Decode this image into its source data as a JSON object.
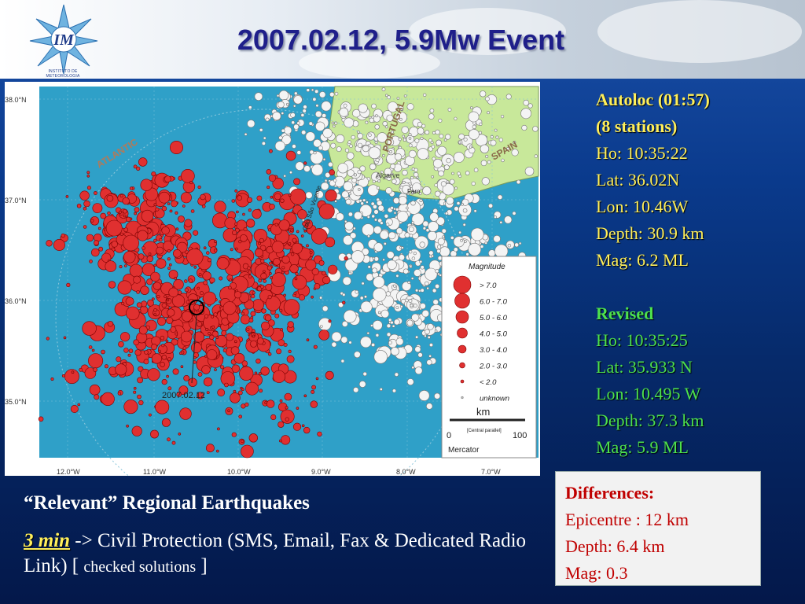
{
  "header": {
    "title": "2007.02.12, 5.9Mw Event",
    "logo_letters": "IM",
    "logo_subtext": "INSTITUTO DE METEOROLOGIA"
  },
  "map": {
    "lat_labels": [
      "38.0°N",
      "37.0°N",
      "36.0°N",
      "35.0°N"
    ],
    "lon_labels": [
      "12.0°W",
      "11.0°W",
      "10.0°W",
      "9.0°W",
      "8.0°W",
      "7.0°W"
    ],
    "region_labels": {
      "atlantic": "ATLANTIC",
      "portugal": "PORTUGAL",
      "spain": "SPAIN",
      "algarve": "Algarve",
      "faro": "Faro",
      "cape": "Cap São Vicente"
    },
    "event_label": "2007.02.12",
    "legend": {
      "title": "Magnitude",
      "items": [
        "> 7.0",
        "6.0 - 7.0",
        "5.0 - 6.0",
        "4.0 - 5.0",
        "3.0 - 4.0",
        "2.0 - 3.0",
        "< 2.0",
        "unknown"
      ]
    },
    "scale": {
      "unit": "km",
      "note": "[Central parallel]",
      "min": "0",
      "max": "100"
    },
    "projection": "Mercator",
    "colors": {
      "sea": "#2fa0c8",
      "land": "#c8e89a",
      "quake": "#e03030"
    }
  },
  "autoloc": {
    "heading1": "Autoloc (01:57)",
    "heading2": "(8 stations)",
    "lines": [
      "Ho: 10:35:22",
      "Lat: 36.02N",
      "Lon: 10.46W",
      "Depth: 30.9 km",
      "Mag: 6.2 ML"
    ]
  },
  "revised": {
    "heading": "Revised",
    "lines": [
      "Ho: 10:35:25",
      "Lat: 35.933 N",
      "Lon: 10.495 W",
      "Depth: 37.3 km",
      "Mag: 5.9 ML"
    ]
  },
  "differences": {
    "heading": "Differences:",
    "lines": [
      "Epicentre : 12 km",
      "Depth: 6.4 km",
      "Mag: 0.3"
    ]
  },
  "bottom": {
    "heading": "“Relevant” Regional Earthquakes",
    "min_label": "3 min",
    "text1": " -> Civil Protection (SMS, Email, Fax & Dedicated Radio Link) [ ",
    "small": "checked solutions",
    "text2": " ]"
  }
}
